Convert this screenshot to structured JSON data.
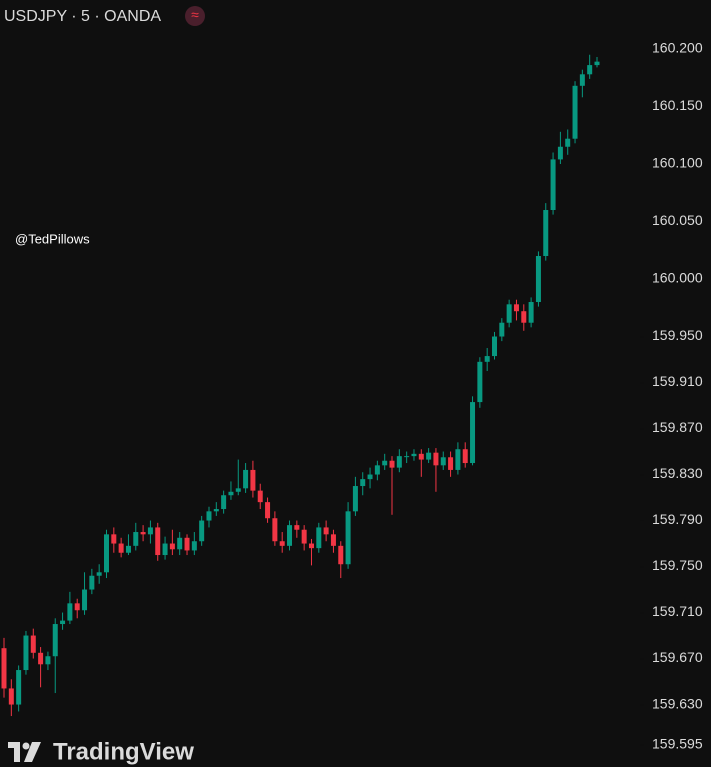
{
  "chart_data": {
    "type": "candlestick",
    "title": "USDJPY · 5 · OANDA",
    "annotation": "@TedPillows",
    "brand": "TradingView",
    "up_color": "#089981",
    "down_color": "#f23645",
    "ylim": [
      159.5757,
      160.2426
    ],
    "yticks": [
      {
        "value": 160.2,
        "label": "160.200"
      },
      {
        "value": 160.15,
        "label": "160.150"
      },
      {
        "value": 160.1,
        "label": "160.100"
      },
      {
        "value": 160.05,
        "label": "160.050"
      },
      {
        "value": 160.0,
        "label": "160.000"
      },
      {
        "value": 159.95,
        "label": "159.950"
      },
      {
        "value": 159.91,
        "label": "159.910"
      },
      {
        "value": 159.87,
        "label": "159.870"
      },
      {
        "value": 159.83,
        "label": "159.830"
      },
      {
        "value": 159.79,
        "label": "159.790"
      },
      {
        "value": 159.75,
        "label": "159.750"
      },
      {
        "value": 159.71,
        "label": "159.710"
      },
      {
        "value": 159.67,
        "label": "159.670"
      },
      {
        "value": 159.63,
        "label": "159.630"
      },
      {
        "value": 159.595,
        "label": "159.595"
      }
    ],
    "open": [
      159.679,
      159.644,
      159.63,
      159.66,
      159.69,
      159.675,
      159.665,
      159.672,
      159.7,
      159.703,
      159.718,
      159.712,
      159.73,
      159.742,
      159.745,
      159.778,
      159.77,
      159.762,
      159.768,
      159.78,
      159.778,
      159.784,
      159.76,
      159.77,
      159.765,
      159.775,
      159.764,
      159.772,
      159.79,
      159.798,
      159.8,
      159.812,
      159.815,
      159.818,
      159.834,
      159.816,
      159.806,
      159.792,
      159.772,
      159.768,
      159.786,
      159.782,
      159.77,
      159.766,
      159.784,
      159.778,
      159.768,
      159.752,
      159.798,
      159.82,
      159.826,
      159.83,
      159.838,
      159.842,
      159.836,
      159.846,
      159.846,
      159.848,
      159.843,
      159.849,
      159.838,
      159.845,
      159.834,
      159.852,
      159.84,
      159.893,
      159.928,
      159.933,
      159.95,
      159.962,
      159.978,
      159.972,
      159.962,
      159.98,
      160.02,
      160.06,
      160.104,
      160.115,
      160.122,
      160.168,
      160.178,
      160.186
    ],
    "high": [
      159.688,
      159.652,
      159.664,
      159.694,
      159.696,
      159.68,
      159.676,
      159.705,
      159.71,
      159.728,
      159.722,
      159.745,
      159.748,
      159.752,
      159.782,
      159.784,
      159.775,
      159.778,
      159.788,
      159.786,
      159.79,
      159.788,
      159.776,
      159.782,
      159.78,
      159.778,
      159.78,
      159.794,
      159.802,
      159.806,
      159.816,
      159.824,
      159.843,
      159.84,
      159.842,
      159.822,
      159.81,
      159.798,
      159.78,
      159.79,
      159.79,
      159.786,
      159.774,
      159.788,
      159.79,
      159.782,
      159.772,
      159.806,
      159.828,
      159.832,
      159.836,
      159.842,
      159.848,
      159.846,
      159.852,
      159.85,
      159.852,
      159.852,
      159.853,
      159.853,
      159.85,
      159.85,
      159.858,
      159.858,
      159.898,
      159.932,
      159.94,
      159.954,
      159.966,
      159.982,
      159.982,
      159.978,
      159.984,
      160.024,
      160.066,
      160.11,
      160.128,
      160.13,
      160.172,
      160.182,
      160.195,
      160.193
    ],
    "low": [
      159.636,
      159.62,
      159.624,
      159.656,
      159.67,
      159.645,
      159.66,
      159.64,
      159.695,
      159.7,
      159.705,
      159.708,
      159.726,
      159.735,
      159.74,
      159.762,
      159.758,
      159.76,
      159.764,
      159.772,
      159.77,
      159.755,
      159.756,
      159.76,
      159.76,
      159.76,
      159.76,
      159.768,
      159.784,
      159.794,
      159.796,
      159.808,
      159.812,
      159.814,
      159.81,
      159.8,
      159.788,
      159.768,
      159.762,
      159.764,
      159.775,
      159.764,
      159.751,
      159.762,
      159.772,
      159.762,
      159.74,
      159.748,
      159.794,
      159.812,
      159.818,
      159.825,
      159.834,
      159.795,
      159.832,
      159.84,
      159.842,
      159.828,
      159.84,
      159.815,
      159.834,
      159.828,
      159.83,
      159.836,
      159.838,
      159.888,
      159.92,
      159.93,
      159.946,
      159.958,
      159.964,
      159.955,
      159.958,
      159.976,
      160.016,
      160.056,
      160.1,
      160.108,
      160.118,
      160.158,
      160.174,
      160.184
    ],
    "close": [
      159.644,
      159.63,
      159.66,
      159.69,
      159.675,
      159.665,
      159.672,
      159.7,
      159.703,
      159.718,
      159.712,
      159.73,
      159.742,
      159.745,
      159.778,
      159.77,
      159.762,
      159.768,
      159.78,
      159.778,
      159.784,
      159.76,
      159.77,
      159.765,
      159.775,
      159.764,
      159.772,
      159.79,
      159.798,
      159.8,
      159.812,
      159.815,
      159.818,
      159.834,
      159.816,
      159.806,
      159.792,
      159.772,
      159.768,
      159.786,
      159.782,
      159.77,
      159.766,
      159.784,
      159.778,
      159.768,
      159.752,
      159.798,
      159.82,
      159.826,
      159.83,
      159.838,
      159.842,
      159.836,
      159.846,
      159.846,
      159.848,
      159.843,
      159.849,
      159.838,
      159.845,
      159.834,
      159.852,
      159.84,
      159.893,
      159.928,
      159.933,
      159.95,
      159.962,
      159.978,
      159.972,
      159.962,
      159.98,
      160.02,
      160.06,
      160.104,
      160.115,
      160.122,
      160.168,
      160.178,
      160.186,
      160.189
    ]
  }
}
